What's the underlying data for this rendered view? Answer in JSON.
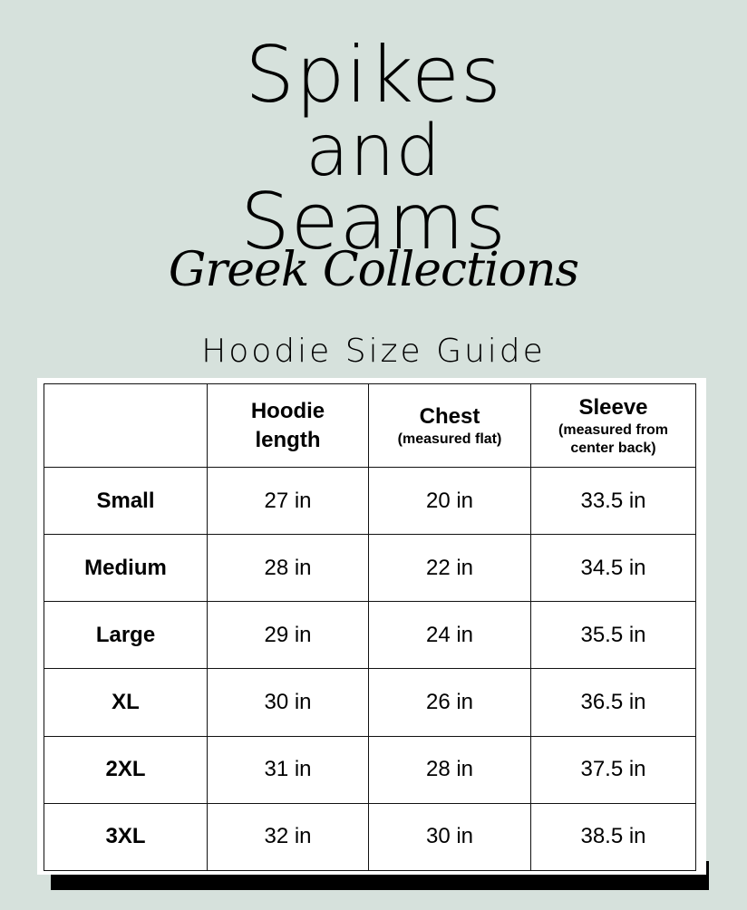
{
  "brand": {
    "line1": "Spikes",
    "line2": "and",
    "line3": "Seams",
    "script": "Greek Collections"
  },
  "title": "Hoodie Size Guide",
  "table": {
    "headers": [
      {
        "main": "",
        "sub": ""
      },
      {
        "main": "Hoodie length",
        "sub": ""
      },
      {
        "main": "Chest",
        "sub": "(measured flat)"
      },
      {
        "main": "Sleeve",
        "sub": "(measured from center back)"
      }
    ],
    "rows": [
      [
        "Small",
        "27 in",
        "20 in",
        "33.5 in"
      ],
      [
        "Medium",
        "28 in",
        "22 in",
        "34.5 in"
      ],
      [
        "Large",
        "29 in",
        "24 in",
        "35.5 in"
      ],
      [
        "XL",
        "30 in",
        "26 in",
        "36.5 in"
      ],
      [
        "2XL",
        "31 in",
        "28 in",
        "37.5 in"
      ],
      [
        "3XL",
        "32 in",
        "30 in",
        "38.5 in"
      ]
    ]
  },
  "colors": {
    "background": "#d6e1dc",
    "card": "#ffffff",
    "shadow": "#000000"
  }
}
